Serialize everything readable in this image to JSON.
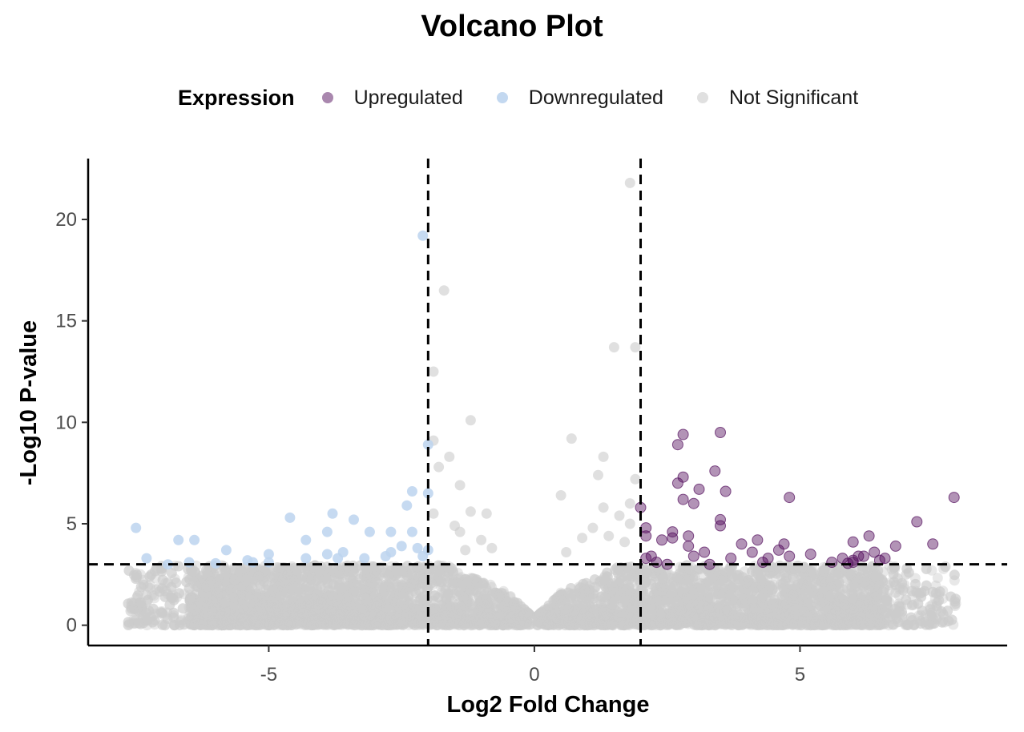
{
  "chart_data": {
    "type": "scatter",
    "title": "Volcano Plot",
    "xlabel": "Log2 Fold Change",
    "ylabel": "-Log10 P-value",
    "xlim": [
      -8.4,
      8.9
    ],
    "ylim": [
      -1.0,
      23.0
    ],
    "xticks": [
      -5,
      0,
      5
    ],
    "xtick_labels": [
      "-5",
      "0",
      "5"
    ],
    "yticks": [
      0,
      5,
      10,
      15,
      20
    ],
    "ytick_labels": [
      "0",
      "5",
      "10",
      "15",
      "20"
    ],
    "grid": false,
    "legend": {
      "title": "Expression",
      "position": "top"
    },
    "thresholds": {
      "log2fc": [
        -2,
        2
      ],
      "neg_log10_p": 3
    },
    "background_points": {
      "series": "Not Significant",
      "count": 8000,
      "x_range": [
        -7.6,
        7.9
      ],
      "y_range": [
        0,
        3
      ]
    },
    "series": [
      {
        "name": "Upregulated",
        "color": "#54105e",
        "points": [
          [
            2.8,
            9.4
          ],
          [
            3.5,
            9.5
          ],
          [
            2.7,
            8.9
          ],
          [
            3.4,
            7.6
          ],
          [
            2.8,
            7.3
          ],
          [
            2.7,
            7.0
          ],
          [
            3.1,
            6.7
          ],
          [
            3.6,
            6.6
          ],
          [
            4.8,
            6.3
          ],
          [
            2.8,
            6.2
          ],
          [
            3.0,
            6.0
          ],
          [
            7.9,
            6.3
          ],
          [
            2.0,
            5.8
          ],
          [
            3.5,
            5.2
          ],
          [
            3.5,
            4.9
          ],
          [
            7.2,
            5.1
          ],
          [
            2.1,
            4.8
          ],
          [
            2.1,
            4.4
          ],
          [
            2.6,
            4.6
          ],
          [
            2.4,
            4.2
          ],
          [
            2.6,
            4.3
          ],
          [
            2.9,
            4.4
          ],
          [
            3.9,
            4.0
          ],
          [
            4.2,
            4.2
          ],
          [
            4.7,
            4.0
          ],
          [
            6.3,
            4.4
          ],
          [
            6.0,
            4.1
          ],
          [
            7.5,
            4.0
          ],
          [
            6.8,
            3.9
          ],
          [
            3.0,
            3.4
          ],
          [
            3.2,
            3.6
          ],
          [
            4.1,
            3.6
          ],
          [
            5.2,
            3.5
          ],
          [
            4.6,
            3.7
          ],
          [
            4.8,
            3.4
          ],
          [
            5.8,
            3.3
          ],
          [
            6.2,
            3.4
          ],
          [
            6.4,
            3.6
          ],
          [
            2.3,
            3.1
          ],
          [
            2.2,
            3.4
          ],
          [
            2.5,
            3.0
          ],
          [
            3.3,
            3.0
          ],
          [
            5.6,
            3.1
          ],
          [
            6.0,
            3.2
          ],
          [
            4.4,
            3.3
          ],
          [
            6.5,
            3.2
          ],
          [
            3.7,
            3.3
          ],
          [
            5.9,
            3.05
          ],
          [
            4.3,
            3.1
          ],
          [
            2.9,
            3.9
          ],
          [
            6.1,
            3.4
          ],
          [
            6.0,
            3.1
          ],
          [
            6.6,
            3.3
          ],
          [
            2.1,
            3.3
          ]
        ]
      },
      {
        "name": "Downregulated",
        "color": "#bcd4ee",
        "points": [
          [
            -2.1,
            19.2
          ],
          [
            -2.0,
            8.9
          ],
          [
            -2.0,
            6.5
          ],
          [
            -2.3,
            6.6
          ],
          [
            -2.4,
            5.9
          ],
          [
            -3.8,
            5.5
          ],
          [
            -4.6,
            5.3
          ],
          [
            -3.4,
            5.2
          ],
          [
            -7.5,
            4.8
          ],
          [
            -6.7,
            4.2
          ],
          [
            -6.4,
            4.2
          ],
          [
            -3.9,
            4.6
          ],
          [
            -3.1,
            4.6
          ],
          [
            -2.3,
            4.6
          ],
          [
            -2.7,
            4.6
          ],
          [
            -4.3,
            4.2
          ],
          [
            -7.3,
            3.3
          ],
          [
            -5.8,
            3.7
          ],
          [
            -5.0,
            3.5
          ],
          [
            -3.6,
            3.6
          ],
          [
            -2.5,
            3.9
          ],
          [
            -2.2,
            3.8
          ],
          [
            -2.7,
            3.6
          ],
          [
            -6.9,
            3.0
          ],
          [
            -6.5,
            3.1
          ],
          [
            -5.4,
            3.2
          ],
          [
            -5.3,
            3.1
          ],
          [
            -4.3,
            3.3
          ],
          [
            -3.7,
            3.3
          ],
          [
            -3.2,
            3.3
          ],
          [
            -2.1,
            3.4
          ],
          [
            -5.0,
            3.1
          ],
          [
            -2.8,
            3.4
          ],
          [
            -6.0,
            3.05
          ],
          [
            -3.9,
            3.5
          ],
          [
            -2.0,
            3.7
          ]
        ]
      },
      {
        "name": "Not Significant",
        "color": "#cccccc",
        "points": [
          [
            1.8,
            21.8
          ],
          [
            -1.7,
            16.5
          ],
          [
            -1.9,
            12.5
          ],
          [
            1.5,
            13.7
          ],
          [
            1.9,
            13.7
          ],
          [
            -1.2,
            10.1
          ],
          [
            0.7,
            9.2
          ],
          [
            -1.9,
            9.1
          ],
          [
            1.3,
            8.3
          ],
          [
            -1.6,
            8.3
          ],
          [
            -1.8,
            7.8
          ],
          [
            1.2,
            7.4
          ],
          [
            1.9,
            7.2
          ],
          [
            -1.4,
            6.9
          ],
          [
            0.5,
            6.4
          ],
          [
            1.8,
            6.0
          ],
          [
            1.3,
            5.8
          ],
          [
            -1.9,
            5.5
          ],
          [
            -1.2,
            5.6
          ],
          [
            -0.9,
            5.5
          ],
          [
            1.6,
            5.4
          ],
          [
            1.8,
            5.0
          ],
          [
            -1.5,
            4.9
          ],
          [
            1.1,
            4.8
          ],
          [
            -1.4,
            4.6
          ],
          [
            1.4,
            4.4
          ],
          [
            -1.0,
            4.2
          ],
          [
            0.9,
            4.3
          ],
          [
            1.7,
            4.1
          ],
          [
            -0.8,
            3.8
          ],
          [
            0.6,
            3.6
          ],
          [
            -1.3,
            3.7
          ],
          [
            -7.6,
            0.7
          ],
          [
            -7.3,
            1.5
          ],
          [
            -6.9,
            2.1
          ],
          [
            7.0,
            2.5
          ],
          [
            6.8,
            1.6
          ],
          [
            6.8,
            0.6
          ],
          [
            6.3,
            1.0
          ],
          [
            -7.0,
            0.6
          ]
        ]
      }
    ]
  }
}
